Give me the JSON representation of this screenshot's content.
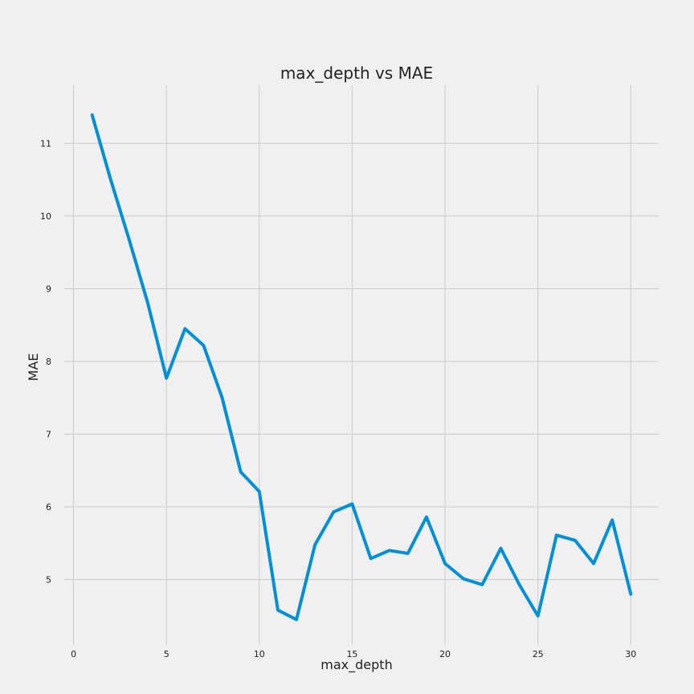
{
  "chart_data": {
    "type": "line",
    "title": "max_depth vs MAE",
    "xlabel": "max_depth",
    "ylabel": "MAE",
    "xlim": [
      -0.5,
      31.5
    ],
    "ylim": [
      4.1,
      11.8
    ],
    "xticks": [
      0,
      5,
      10,
      15,
      20,
      25,
      30
    ],
    "yticks": [
      5,
      6,
      7,
      8,
      9,
      10,
      11
    ],
    "grid": true,
    "x": [
      1,
      2,
      3,
      4,
      5,
      6,
      7,
      8,
      9,
      10,
      11,
      12,
      13,
      14,
      15,
      16,
      17,
      18,
      19,
      20,
      21,
      22,
      23,
      24,
      25,
      26,
      27,
      28,
      29,
      30
    ],
    "series": [
      {
        "color": "#008fd5",
        "values": [
          11.39,
          10.5,
          9.67,
          8.8,
          7.77,
          8.45,
          8.22,
          7.5,
          6.48,
          6.21,
          4.58,
          4.45,
          5.48,
          5.93,
          6.04,
          5.29,
          5.4,
          5.36,
          5.86,
          5.22,
          5.01,
          4.93,
          5.43,
          4.93,
          4.5,
          5.61,
          5.54,
          5.22,
          5.82,
          4.8
        ]
      }
    ]
  }
}
